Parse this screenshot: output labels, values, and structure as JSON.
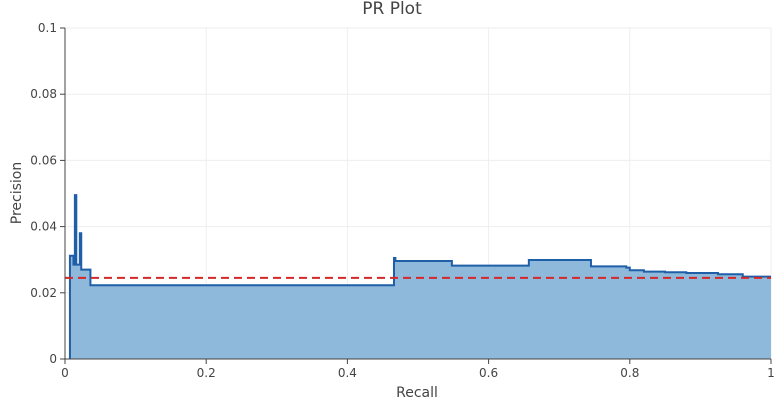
{
  "chart_data": {
    "type": "area",
    "title": "PR Plot",
    "xlabel": "Recall",
    "ylabel": "Precision",
    "xlim": [
      0,
      1
    ],
    "ylim": [
      0,
      0.1
    ],
    "x_ticks": [
      0,
      0.2,
      0.4,
      0.6,
      0.8,
      1
    ],
    "x_tick_labels": [
      "0",
      "0.2",
      "0.4",
      "0.6",
      "0.8",
      "1"
    ],
    "y_ticks": [
      0,
      0.02,
      0.04,
      0.06,
      0.08,
      0.1
    ],
    "y_tick_labels": [
      "0",
      "0.02",
      "0.04",
      "0.06",
      "0.08",
      "0.1"
    ],
    "grid": true,
    "legend": "none",
    "series": [
      {
        "step": "hv",
        "color": "#1f5fa8",
        "fill_color": "#8fb9da",
        "x": [
          0.007,
          0.007,
          0.012,
          0.012,
          0.014,
          0.014,
          0.016,
          0.016,
          0.021,
          0.021,
          0.023,
          0.023,
          0.036,
          0.036,
          0.466,
          0.466,
          0.468,
          0.468,
          0.548,
          0.548,
          0.657,
          0.657,
          0.745,
          0.745,
          0.795,
          0.795,
          0.8,
          0.8,
          0.82,
          0.82,
          0.85,
          0.85,
          0.88,
          0.88,
          0.925,
          0.925,
          0.96,
          0.96,
          1.0
        ],
        "y": [
          0,
          0.0312,
          0.0312,
          0.0285,
          0.0285,
          0.0495,
          0.0495,
          0.0285,
          0.0285,
          0.038,
          0.038,
          0.027,
          0.027,
          0.0223,
          0.0223,
          0.0305,
          0.0305,
          0.0296,
          0.0296,
          0.0282,
          0.0282,
          0.0299,
          0.0299,
          0.028,
          0.028,
          0.0276,
          0.0276,
          0.0268,
          0.0268,
          0.0264,
          0.0264,
          0.0262,
          0.0262,
          0.026,
          0.026,
          0.0256,
          0.0256,
          0.0249,
          0.0249
        ]
      }
    ],
    "baseline": {
      "y": 0.0245,
      "color": "#d62728",
      "style": "dashed"
    }
  }
}
